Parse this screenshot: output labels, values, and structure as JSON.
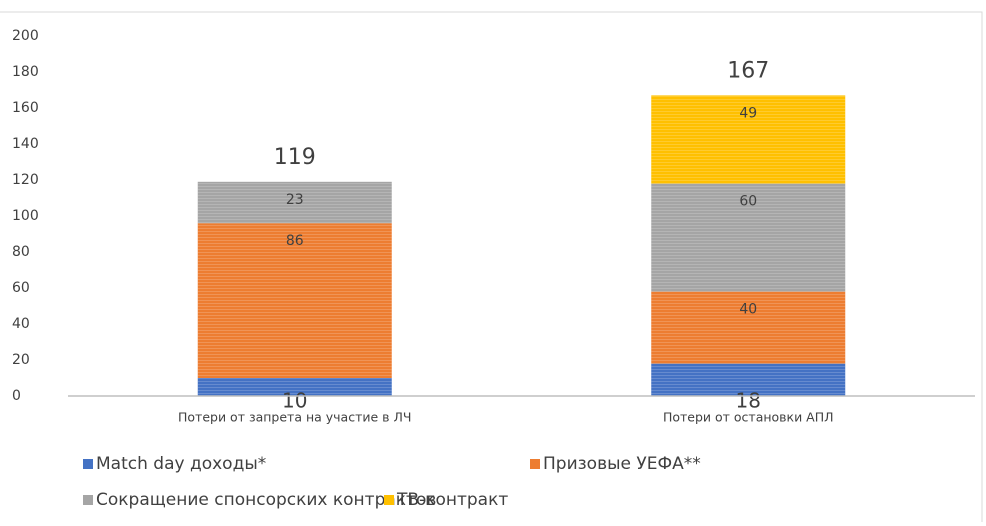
{
  "chart_data": {
    "type": "stacked_bar",
    "categories": [
      "Потери от запрета на участие в ЛЧ",
      "Потери от остановки АПЛ"
    ],
    "series": [
      {
        "name": "Match day доходы*",
        "color": "#4472c4",
        "values": [
          10,
          18
        ]
      },
      {
        "name": "Призовые УЕФА**",
        "color": "#ed7d31",
        "values": [
          86,
          40
        ]
      },
      {
        "name": "Сокращение спонсорских контрактов",
        "color": "#a5a5a5",
        "values": [
          23,
          60
        ]
      },
      {
        "name": "ТВ-контракт",
        "color": "#ffc000",
        "values": [
          null,
          49
        ]
      }
    ],
    "totals": [
      119,
      167
    ],
    "ylim": [
      0,
      200
    ],
    "yticks": [
      0,
      20,
      40,
      60,
      80,
      100,
      120,
      140,
      160,
      180,
      200
    ],
    "grid": false,
    "legend": "bottom"
  }
}
